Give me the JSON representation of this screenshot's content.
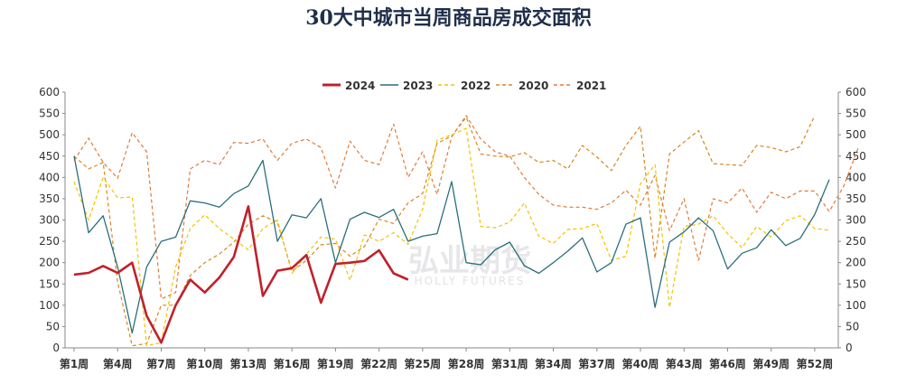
{
  "chart_data": {
    "type": "line",
    "title": "30大中城市当周商品房成交面积",
    "watermark": {
      "cn": "弘业期货",
      "en": "HOLLY FUTURES"
    },
    "ylim": [
      0,
      600
    ],
    "y_ticks": [
      0,
      50,
      100,
      150,
      200,
      250,
      300,
      350,
      400,
      450,
      500,
      550,
      600
    ],
    "x_ticks": [
      "第1周",
      "第4周",
      "第7周",
      "第10周",
      "第13周",
      "第16周",
      "第19周",
      "第22周",
      "第25周",
      "第28周",
      "第31周",
      "第34周",
      "第37周",
      "第40周",
      "第43周",
      "第46周",
      "第49周",
      "第52周"
    ],
    "x_tick_weeks": [
      1,
      4,
      7,
      10,
      13,
      16,
      19,
      22,
      25,
      28,
      31,
      34,
      37,
      40,
      43,
      46,
      49,
      52
    ],
    "grid": false,
    "legend_position": "top",
    "series": [
      {
        "name": "2024",
        "color": "#c0212b",
        "style": "solid",
        "width": 2.6,
        "start_week": 1,
        "values": [
          172,
          176,
          192,
          176,
          200,
          75,
          12,
          100,
          160,
          130,
          165,
          213,
          332,
          122,
          181,
          187,
          218,
          106,
          197,
          200,
          204,
          229,
          175,
          160
        ]
      },
      {
        "name": "2023",
        "color": "#2a6f7a",
        "style": "solid",
        "width": 1.3,
        "start_week": 1,
        "values": [
          450,
          270,
          310,
          190,
          35,
          190,
          250,
          260,
          345,
          340,
          330,
          362,
          380,
          440,
          250,
          312,
          305,
          350,
          200,
          302,
          318,
          306,
          325,
          250,
          262,
          268,
          390,
          200,
          195,
          230,
          248,
          193,
          175,
          200,
          227,
          258,
          178,
          200,
          290,
          305,
          95,
          248,
          272,
          305,
          275,
          185,
          222,
          235,
          277,
          240,
          257,
          313,
          395
        ]
      },
      {
        "name": "2022",
        "color": "#f2c200",
        "style": "dash",
        "width": 1.2,
        "start_week": 1,
        "values": [
          390,
          300,
          400,
          352,
          354,
          5,
          12,
          190,
          280,
          312,
          280,
          255,
          230,
          280,
          300,
          175,
          220,
          260,
          255,
          158,
          265,
          250,
          270,
          243,
          325,
          487,
          500,
          515,
          285,
          282,
          295,
          340,
          262,
          245,
          278,
          280,
          292,
          205,
          215,
          385,
          430,
          95,
          285,
          290,
          310,
          268,
          235,
          285,
          260,
          298,
          310,
          280,
          276
        ]
      },
      {
        "name": "2020",
        "color": "#d7871f",
        "style": "dash",
        "width": 1.2,
        "start_week": 1,
        "values": [
          450,
          420,
          435,
          155,
          5,
          10,
          100,
          100,
          170,
          200,
          220,
          248,
          290,
          310,
          295,
          180,
          205,
          242,
          245,
          215,
          238,
          302,
          292,
          340,
          362,
          480,
          497,
          541,
          455,
          450,
          448,
          458,
          435,
          440,
          420,
          475,
          448,
          416,
          475,
          520,
          210,
          455,
          483,
          510,
          432,
          430,
          428,
          475,
          470,
          460,
          472,
          545
        ]
      },
      {
        "name": "2021",
        "color": "#e07b39",
        "style": "dash",
        "width": 1.2,
        "start_week": 1,
        "values": [
          440,
          492,
          435,
          398,
          505,
          460,
          115,
          130,
          420,
          440,
          430,
          482,
          480,
          490,
          440,
          480,
          490,
          470,
          375,
          485,
          440,
          430,
          525,
          400,
          460,
          360,
          495,
          545,
          490,
          460,
          450,
          400,
          360,
          335,
          330,
          330,
          325,
          340,
          370,
          335,
          405,
          275,
          350,
          205,
          350,
          340,
          375,
          318,
          365,
          350,
          368,
          368,
          320,
          380,
          470
        ]
      }
    ]
  }
}
